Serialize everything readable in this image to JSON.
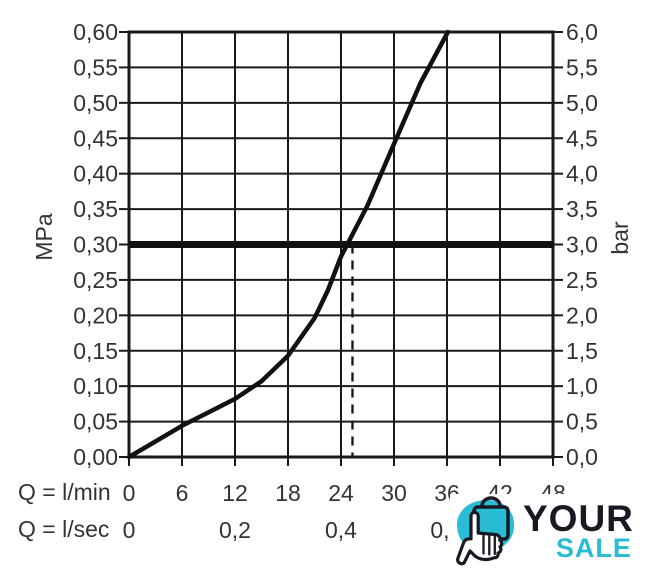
{
  "colors": {
    "axis": "#1a1a1a",
    "text": "#333333",
    "background": "#ffffff",
    "reference_line": "#111111",
    "curve": "#111111"
  },
  "chart_data": {
    "type": "line",
    "title": "",
    "grid": true,
    "x_axis": {
      "unit_label": "Q = l/min",
      "range_l_min": [
        0,
        48
      ],
      "ticks": [
        {
          "v": 0,
          "label": "0"
        },
        {
          "v": 6,
          "label": "6"
        },
        {
          "v": 12,
          "label": "12"
        },
        {
          "v": 18,
          "label": "18"
        },
        {
          "v": 24,
          "label": "24"
        },
        {
          "v": 30,
          "label": "30"
        },
        {
          "v": 36,
          "label": "36"
        },
        {
          "v": 42,
          "label": "42"
        },
        {
          "v": 48,
          "label": "48"
        }
      ]
    },
    "x_axis_secondary": {
      "unit_label": "Q = l/sec",
      "ticks": [
        {
          "v": 0,
          "label": "0"
        },
        {
          "v": 12,
          "label": "0,2"
        },
        {
          "v": 24,
          "label": "0,4"
        },
        {
          "v": 35.2,
          "label": "0,"
        }
      ]
    },
    "y_axis_left": {
      "unit_label": "MPa",
      "range": [
        0,
        0.6
      ]
    },
    "y_axis_right": {
      "unit_label": "bar",
      "range": [
        0,
        6
      ]
    },
    "y_ticks": [
      {
        "v": 0.0,
        "mpa": "0,00",
        "bar": "0,0"
      },
      {
        "v": 0.05,
        "mpa": "0,05",
        "bar": "0,5"
      },
      {
        "v": 0.1,
        "mpa": "0,10",
        "bar": "1,0"
      },
      {
        "v": 0.15,
        "mpa": "0,15",
        "bar": "1,5"
      },
      {
        "v": 0.2,
        "mpa": "0,20",
        "bar": "2,0"
      },
      {
        "v": 0.25,
        "mpa": "0,25",
        "bar": "2,5"
      },
      {
        "v": 0.3,
        "mpa": "0,30",
        "bar": "3,0"
      },
      {
        "v": 0.35,
        "mpa": "0,35",
        "bar": "3,5"
      },
      {
        "v": 0.4,
        "mpa": "0,40",
        "bar": "4,0"
      },
      {
        "v": 0.45,
        "mpa": "0,45",
        "bar": "4,5"
      },
      {
        "v": 0.5,
        "mpa": "0,50",
        "bar": "5,0"
      },
      {
        "v": 0.55,
        "mpa": "0,55",
        "bar": "5,5"
      },
      {
        "v": 0.6,
        "mpa": "0,60",
        "bar": "6,0"
      }
    ],
    "reference_line_mpa": 0.3,
    "dashed_guide_l_min": 25.3,
    "curve_points_l_min_mpa": [
      [
        0,
        0
      ],
      [
        3,
        0.022
      ],
      [
        6,
        0.044
      ],
      [
        9,
        0.063
      ],
      [
        12,
        0.082
      ],
      [
        15,
        0.107
      ],
      [
        18,
        0.143
      ],
      [
        21,
        0.196
      ],
      [
        22.5,
        0.235
      ],
      [
        24,
        0.283
      ],
      [
        27,
        0.355
      ],
      [
        30,
        0.442
      ],
      [
        33,
        0.528
      ],
      [
        36.1,
        0.6
      ]
    ]
  },
  "logo": {
    "line1": "YOUR",
    "line2": "SALE",
    "accent_color": "#2bbcd5",
    "dark_color": "#191923"
  }
}
